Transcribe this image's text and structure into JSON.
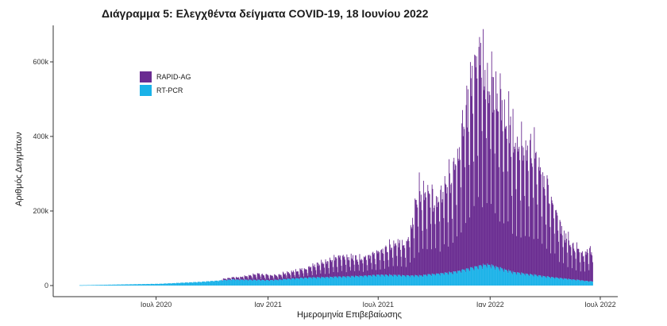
{
  "chart_data": {
    "type": "bar",
    "title": "Διάγραμμα 5: Ελεγχθέντα δείγματα COVID-19, 18 Ιουνίου 2022",
    "xlabel": "Ημερομηνία Επιβεβαίωσης",
    "ylabel": "Αριθμός Δειγμάτων",
    "stacked": true,
    "x_range": [
      "2020-02-26",
      "2022-06-18"
    ],
    "ylim": [
      0,
      700000
    ],
    "y_ticks": [
      {
        "value": 0,
        "label": "0"
      },
      {
        "value": 200000,
        "label": "200k"
      },
      {
        "value": 400000,
        "label": "400k"
      },
      {
        "value": 600000,
        "label": "600k"
      }
    ],
    "x_ticks": [
      {
        "date": "2020-07-01",
        "label": "Ιουλ 2020"
      },
      {
        "date": "2021-01-01",
        "label": "Ιαν 2021"
      },
      {
        "date": "2021-07-01",
        "label": "Ιουλ 2021"
      },
      {
        "date": "2022-01-01",
        "label": "Ιαν 2022"
      },
      {
        "date": "2022-07-01",
        "label": "Ιουλ 2022"
      }
    ],
    "grid": false,
    "legend": {
      "position": "top-left-inside"
    },
    "series": [
      {
        "name": "RAPID-AG",
        "color": "#6a2c91",
        "weekly_peaks": [
          {
            "week_start": "2020-11-16",
            "value": 8000
          },
          {
            "week_start": "2020-12-14",
            "value": 18000
          },
          {
            "week_start": "2021-01-11",
            "value": 14000
          },
          {
            "week_start": "2021-02-08",
            "value": 20000
          },
          {
            "week_start": "2021-03-08",
            "value": 30000
          },
          {
            "week_start": "2021-04-05",
            "value": 48000
          },
          {
            "week_start": "2021-05-03",
            "value": 60000
          },
          {
            "week_start": "2021-05-31",
            "value": 55000
          },
          {
            "week_start": "2021-06-28",
            "value": 65000
          },
          {
            "week_start": "2021-07-26",
            "value": 90000
          },
          {
            "week_start": "2021-08-16",
            "value": 100000
          },
          {
            "week_start": "2021-09-06",
            "value": 250000
          },
          {
            "week_start": "2021-10-04",
            "value": 220000
          },
          {
            "week_start": "2021-11-01",
            "value": 300000
          },
          {
            "week_start": "2021-11-29",
            "value": 540000
          },
          {
            "week_start": "2021-12-13",
            "value": 620000
          },
          {
            "week_start": "2022-01-03",
            "value": 540000
          },
          {
            "week_start": "2022-01-24",
            "value": 460000
          },
          {
            "week_start": "2022-02-14",
            "value": 380000
          },
          {
            "week_start": "2022-03-07",
            "value": 380000
          },
          {
            "week_start": "2022-04-04",
            "value": 270000
          },
          {
            "week_start": "2022-05-02",
            "value": 130000
          },
          {
            "week_start": "2022-05-30",
            "value": 80000
          },
          {
            "week_start": "2022-06-13",
            "value": 95000
          }
        ]
      },
      {
        "name": "RT-PCR",
        "color": "#1ab2e8",
        "weekly_peaks": [
          {
            "week_start": "2020-03-02",
            "value": 1000
          },
          {
            "week_start": "2020-05-04",
            "value": 3000
          },
          {
            "week_start": "2020-07-06",
            "value": 5000
          },
          {
            "week_start": "2020-09-07",
            "value": 10000
          },
          {
            "week_start": "2020-11-02",
            "value": 17000
          },
          {
            "week_start": "2021-01-04",
            "value": 15000
          },
          {
            "week_start": "2021-03-01",
            "value": 22000
          },
          {
            "week_start": "2021-05-03",
            "value": 25000
          },
          {
            "week_start": "2021-07-05",
            "value": 30000
          },
          {
            "week_start": "2021-09-06",
            "value": 28000
          },
          {
            "week_start": "2021-11-01",
            "value": 38000
          },
          {
            "week_start": "2021-12-27",
            "value": 60000
          },
          {
            "week_start": "2022-02-07",
            "value": 38000
          },
          {
            "week_start": "2022-04-04",
            "value": 25000
          },
          {
            "week_start": "2022-06-13",
            "value": 12000
          }
        ]
      }
    ]
  }
}
